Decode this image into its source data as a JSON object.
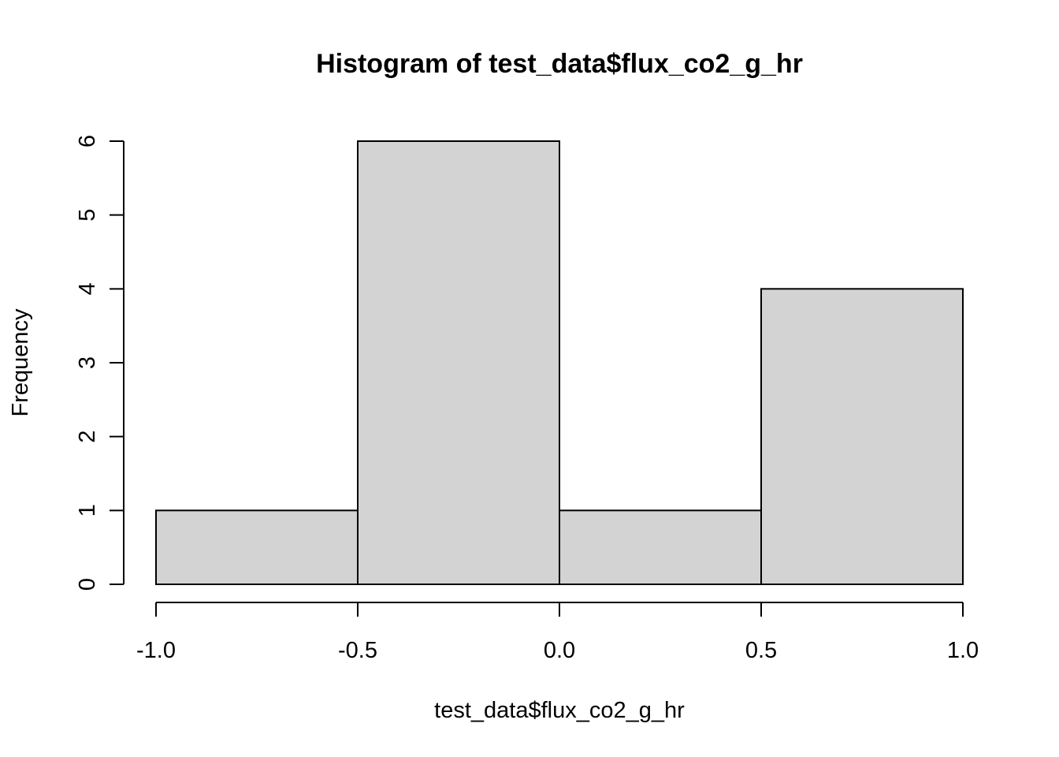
{
  "chart_data": {
    "type": "bar",
    "title": "Histogram of test_data$flux_co2_g_hr",
    "xlabel": "test_data$flux_co2_g_hr",
    "ylabel": "Frequency",
    "bins": [
      {
        "from": -1.0,
        "to": -0.5,
        "count": 1
      },
      {
        "from": -0.5,
        "to": 0.0,
        "count": 6
      },
      {
        "from": 0.0,
        "to": 0.5,
        "count": 1
      },
      {
        "from": 0.5,
        "to": 1.0,
        "count": 4
      }
    ],
    "xlim": [
      -1.0,
      1.0
    ],
    "ylim": [
      0,
      6
    ],
    "x_ticks": [
      -1.0,
      -0.5,
      0.0,
      0.5,
      1.0
    ],
    "x_tick_labels": [
      "-1.0",
      "-0.5",
      "0.0",
      "0.5",
      "1.0"
    ],
    "y_ticks": [
      0,
      1,
      2,
      3,
      4,
      5,
      6
    ],
    "y_tick_labels": [
      "0",
      "1",
      "2",
      "3",
      "4",
      "5",
      "6"
    ],
    "grid": false,
    "bar_fill": "#d3d3d3",
    "bar_stroke": "#000000"
  }
}
